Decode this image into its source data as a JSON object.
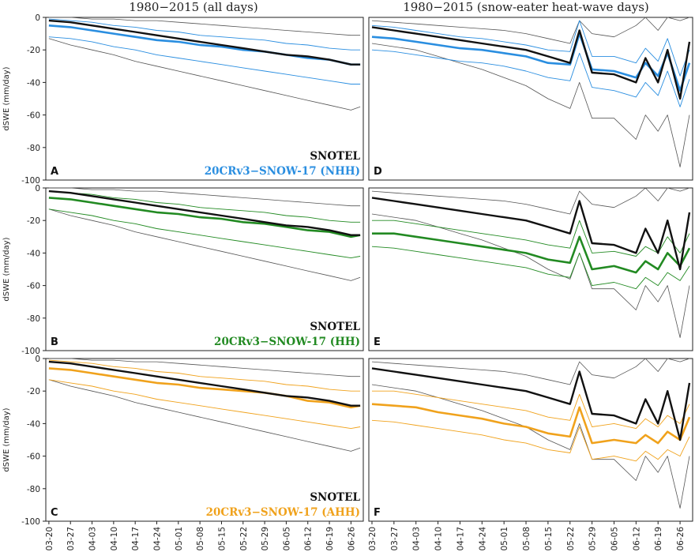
{
  "column_titles": [
    "1980−2015 (all days)",
    "1980−2015 (snow-eater heat-wave days)"
  ],
  "ylabel": "dSWE (mm/day)",
  "colors": {
    "snotel": "#111111",
    "nhh": "#2a8ee0",
    "hh": "#228a22",
    "ahh": "#f0a21c",
    "range": "#555555"
  },
  "x_tick_labels": [
    "03-20",
    "03-27",
    "04-03",
    "04-10",
    "04-17",
    "04-24",
    "05-01",
    "05-08",
    "05-15",
    "05-22",
    "05-29",
    "06-05",
    "06-12",
    "06-19",
    "06-26"
  ],
  "y_tick_labels": [
    "0",
    "-20",
    "-40",
    "-60",
    "-80",
    "-100"
  ],
  "chart_data": [
    {
      "type": "line",
      "panel": "A",
      "row": 0,
      "col": 0,
      "legend": [
        "SNOTEL",
        "20CRv3−SNOW-17 (NHH)"
      ],
      "model_color": "nhh",
      "ylim": [
        -100,
        0
      ],
      "x_dates": [
        "03-20",
        "03-27",
        "04-03",
        "04-10",
        "04-17",
        "04-24",
        "05-01",
        "05-08",
        "05-15",
        "05-22",
        "05-29",
        "06-05",
        "06-12",
        "06-19",
        "06-26",
        "06-29"
      ],
      "series": [
        {
          "name": "SNOTEL",
          "values": [
            -2,
            -3,
            -5,
            -7,
            -9,
            -11,
            -13,
            -15,
            -17,
            -19,
            -21,
            -23,
            -24,
            -26,
            -29,
            -29
          ]
        },
        {
          "name": "20CRv3−SNOW-17 (NHH)",
          "values": [
            -5,
            -6,
            -8,
            -10,
            -12,
            -14,
            -15,
            -17,
            -18,
            -20,
            -21,
            -23,
            -25,
            -26,
            -29,
            -29
          ]
        },
        {
          "values": [
            -12,
            -13,
            -15,
            -18,
            -20,
            -23,
            -25,
            -27,
            -29,
            -31,
            -33,
            -35,
            -37,
            -39,
            -41,
            -41
          ]
        },
        {
          "values": [
            -1,
            -2,
            -3,
            -5,
            -6,
            -8,
            -9,
            -11,
            -12,
            -13,
            -14,
            -16,
            -17,
            -19,
            -20,
            -20
          ]
        },
        {
          "values": [
            -13,
            -17,
            -20,
            -23,
            -27,
            -30,
            -33,
            -36,
            -39,
            -42,
            -45,
            -48,
            -51,
            -54,
            -57,
            -55
          ]
        },
        {
          "values": [
            0,
            0,
            -1,
            -1,
            -2,
            -2,
            -3,
            -4,
            -5,
            -6,
            -7,
            -8,
            -9,
            -10,
            -11,
            -11
          ]
        }
      ]
    },
    {
      "type": "line",
      "panel": "B",
      "row": 1,
      "col": 0,
      "legend": [
        "SNOTEL",
        "20CRv3−SNOW-17 (HH)"
      ],
      "model_color": "hh",
      "ylim": [
        -100,
        0
      ],
      "x_dates": [
        "03-20",
        "03-27",
        "04-03",
        "04-10",
        "04-17",
        "04-24",
        "05-01",
        "05-08",
        "05-15",
        "05-22",
        "05-29",
        "06-05",
        "06-12",
        "06-19",
        "06-26",
        "06-29"
      ],
      "series": [
        {
          "name": "SNOTEL",
          "values": [
            -2,
            -3,
            -5,
            -7,
            -9,
            -11,
            -13,
            -15,
            -17,
            -19,
            -21,
            -23,
            -24,
            -26,
            -29,
            -29
          ]
        },
        {
          "name": "20CRv3−SNOW-17 (HH)",
          "values": [
            -6,
            -7,
            -9,
            -11,
            -13,
            -15,
            -16,
            -18,
            -19,
            -21,
            -22,
            -24,
            -26,
            -27,
            -30,
            -29
          ]
        },
        {
          "values": [
            -13,
            -15,
            -17,
            -20,
            -22,
            -25,
            -27,
            -29,
            -31,
            -33,
            -35,
            -37,
            -39,
            -41,
            -43,
            -42
          ]
        },
        {
          "values": [
            -2,
            -3,
            -4,
            -6,
            -7,
            -9,
            -10,
            -12,
            -13,
            -14,
            -15,
            -17,
            -18,
            -20,
            -21,
            -21
          ]
        },
        {
          "values": [
            -13,
            -17,
            -20,
            -23,
            -27,
            -30,
            -33,
            -36,
            -39,
            -42,
            -45,
            -48,
            -51,
            -54,
            -57,
            -55
          ]
        },
        {
          "values": [
            0,
            0,
            -1,
            -1,
            -2,
            -2,
            -3,
            -4,
            -5,
            -6,
            -7,
            -8,
            -9,
            -10,
            -11,
            -11
          ]
        }
      ]
    },
    {
      "type": "line",
      "panel": "C",
      "row": 2,
      "col": 0,
      "legend": [
        "SNOTEL",
        "20CRv3−SNOW-17 (AHH)"
      ],
      "model_color": "ahh",
      "ylim": [
        -100,
        0
      ],
      "x_dates": [
        "03-20",
        "03-27",
        "04-03",
        "04-10",
        "04-17",
        "04-24",
        "05-01",
        "05-08",
        "05-15",
        "05-22",
        "05-29",
        "06-05",
        "06-12",
        "06-19",
        "06-26",
        "06-29"
      ],
      "series": [
        {
          "name": "SNOTEL",
          "values": [
            -2,
            -3,
            -5,
            -7,
            -9,
            -11,
            -13,
            -15,
            -17,
            -19,
            -21,
            -23,
            -24,
            -26,
            -29,
            -29
          ]
        },
        {
          "name": "20CRv3−SNOW-17 (AHH)",
          "values": [
            -6,
            -7,
            -9,
            -11,
            -13,
            -15,
            -16,
            -18,
            -19,
            -20,
            -21,
            -23,
            -26,
            -27,
            -30,
            -29
          ]
        },
        {
          "values": [
            -13,
            -15,
            -17,
            -20,
            -22,
            -25,
            -27,
            -29,
            -31,
            -33,
            -35,
            -37,
            -39,
            -41,
            -43,
            -42
          ]
        },
        {
          "values": [
            -1,
            -2,
            -3,
            -5,
            -6,
            -8,
            -9,
            -11,
            -12,
            -13,
            -14,
            -16,
            -17,
            -19,
            -20,
            -20
          ]
        },
        {
          "values": [
            -13,
            -17,
            -20,
            -23,
            -27,
            -30,
            -33,
            -36,
            -39,
            -42,
            -45,
            -48,
            -51,
            -54,
            -57,
            -55
          ]
        },
        {
          "values": [
            0,
            0,
            -1,
            -1,
            -2,
            -2,
            -3,
            -4,
            -5,
            -6,
            -7,
            -8,
            -9,
            -10,
            -11,
            -11
          ]
        }
      ]
    },
    {
      "type": "line",
      "panel": "D",
      "row": 0,
      "col": 1,
      "model_color": "nhh",
      "ylim": [
        -100,
        0
      ],
      "x_dates": [
        "03-20",
        "03-27",
        "04-03",
        "04-10",
        "04-17",
        "04-24",
        "05-01",
        "05-08",
        "05-15",
        "05-22",
        "05-25",
        "05-29",
        "06-05",
        "06-12",
        "06-15",
        "06-19",
        "06-22",
        "06-26",
        "06-29"
      ],
      "series": [
        {
          "name": "SNOTEL",
          "values": [
            -6,
            -8,
            -10,
            -12,
            -14,
            -16,
            -18,
            -20,
            -24,
            -28,
            -8,
            -34,
            -35,
            -40,
            -25,
            -40,
            -20,
            -50,
            -15
          ]
        },
        {
          "name": "20CRv3−SNOW-17 (NHH)",
          "values": [
            -12,
            -13,
            -15,
            -17,
            -19,
            -20,
            -22,
            -24,
            -28,
            -29,
            -10,
            -32,
            -33,
            -37,
            -28,
            -36,
            -22,
            -45,
            -28
          ]
        },
        {
          "values": [
            -20,
            -21,
            -23,
            -25,
            -27,
            -28,
            -30,
            -33,
            -37,
            -39,
            -22,
            -43,
            -45,
            -49,
            -40,
            -48,
            -33,
            -55,
            -38
          ]
        },
        {
          "values": [
            -5,
            -6,
            -8,
            -10,
            -12,
            -13,
            -15,
            -17,
            -20,
            -21,
            -2,
            -24,
            -24,
            -28,
            -19,
            -27,
            -13,
            -36,
            -20
          ]
        },
        {
          "values": [
            -16,
            -18,
            -20,
            -24,
            -28,
            -32,
            -37,
            -42,
            -50,
            -56,
            -40,
            -62,
            -62,
            -75,
            -60,
            -70,
            -60,
            -92,
            -60
          ]
        },
        {
          "values": [
            -2,
            -3,
            -4,
            -5,
            -6,
            -7,
            -8,
            -10,
            -13,
            -16,
            -2,
            -10,
            -12,
            -5,
            0,
            -8,
            0,
            -2,
            0
          ]
        }
      ]
    },
    {
      "type": "line",
      "panel": "E",
      "row": 1,
      "col": 1,
      "model_color": "hh",
      "ylim": [
        -100,
        0
      ],
      "x_dates": [
        "03-20",
        "03-27",
        "04-03",
        "04-10",
        "04-17",
        "04-24",
        "05-01",
        "05-08",
        "05-15",
        "05-22",
        "05-25",
        "05-29",
        "06-05",
        "06-12",
        "06-15",
        "06-19",
        "06-22",
        "06-26",
        "06-29"
      ],
      "series": [
        {
          "name": "SNOTEL",
          "values": [
            -6,
            -8,
            -10,
            -12,
            -14,
            -16,
            -18,
            -20,
            -24,
            -28,
            -8,
            -34,
            -35,
            -40,
            -25,
            -40,
            -20,
            -50,
            -15
          ]
        },
        {
          "name": "20CRv3−SNOW-17 (HH)",
          "values": [
            -28,
            -28,
            -30,
            -32,
            -34,
            -36,
            -38,
            -40,
            -44,
            -46,
            -30,
            -50,
            -48,
            -52,
            -45,
            -50,
            -40,
            -48,
            -37
          ]
        },
        {
          "values": [
            -36,
            -37,
            -39,
            -41,
            -43,
            -45,
            -47,
            -49,
            -53,
            -55,
            -40,
            -60,
            -58,
            -62,
            -55,
            -60,
            -52,
            -57,
            -48
          ]
        },
        {
          "values": [
            -20,
            -20,
            -22,
            -24,
            -26,
            -28,
            -30,
            -32,
            -35,
            -37,
            -20,
            -40,
            -39,
            -42,
            -36,
            -40,
            -30,
            -40,
            -28
          ]
        },
        {
          "values": [
            -16,
            -18,
            -20,
            -24,
            -28,
            -32,
            -37,
            -42,
            -50,
            -56,
            -40,
            -62,
            -62,
            -75,
            -60,
            -70,
            -60,
            -92,
            -60
          ]
        },
        {
          "values": [
            -2,
            -3,
            -4,
            -5,
            -6,
            -7,
            -8,
            -10,
            -13,
            -16,
            -2,
            -10,
            -12,
            -5,
            0,
            -8,
            0,
            -2,
            0
          ]
        }
      ]
    },
    {
      "type": "line",
      "panel": "F",
      "row": 2,
      "col": 1,
      "model_color": "ahh",
      "ylim": [
        -100,
        0
      ],
      "x_dates": [
        "03-20",
        "03-27",
        "04-03",
        "04-10",
        "04-17",
        "04-24",
        "05-01",
        "05-08",
        "05-15",
        "05-22",
        "05-25",
        "05-29",
        "06-05",
        "06-12",
        "06-15",
        "06-19",
        "06-22",
        "06-26",
        "06-29"
      ],
      "series": [
        {
          "name": "SNOTEL",
          "values": [
            -6,
            -8,
            -10,
            -12,
            -14,
            -16,
            -18,
            -20,
            -24,
            -28,
            -8,
            -34,
            -35,
            -40,
            -25,
            -40,
            -20,
            -50,
            -15
          ]
        },
        {
          "name": "20CRv3−SNOW-17 (AHH)",
          "values": [
            -28,
            -29,
            -30,
            -33,
            -35,
            -37,
            -40,
            -42,
            -46,
            -48,
            -30,
            -52,
            -50,
            -52,
            -47,
            -52,
            -45,
            -50,
            -36
          ]
        },
        {
          "values": [
            -38,
            -39,
            -41,
            -43,
            -45,
            -47,
            -50,
            -52,
            -56,
            -58,
            -42,
            -62,
            -60,
            -63,
            -57,
            -62,
            -56,
            -60,
            -48
          ]
        },
        {
          "values": [
            -20,
            -20,
            -22,
            -24,
            -26,
            -28,
            -30,
            -32,
            -36,
            -38,
            -22,
            -42,
            -40,
            -43,
            -37,
            -42,
            -35,
            -40,
            -28
          ]
        },
        {
          "values": [
            -16,
            -18,
            -20,
            -24,
            -28,
            -32,
            -37,
            -42,
            -50,
            -56,
            -40,
            -62,
            -62,
            -75,
            -60,
            -70,
            -60,
            -92,
            -60
          ]
        },
        {
          "values": [
            -2,
            -3,
            -4,
            -5,
            -6,
            -7,
            -8,
            -10,
            -13,
            -16,
            -2,
            -10,
            -12,
            -5,
            0,
            -8,
            0,
            -2,
            0
          ]
        }
      ]
    }
  ]
}
